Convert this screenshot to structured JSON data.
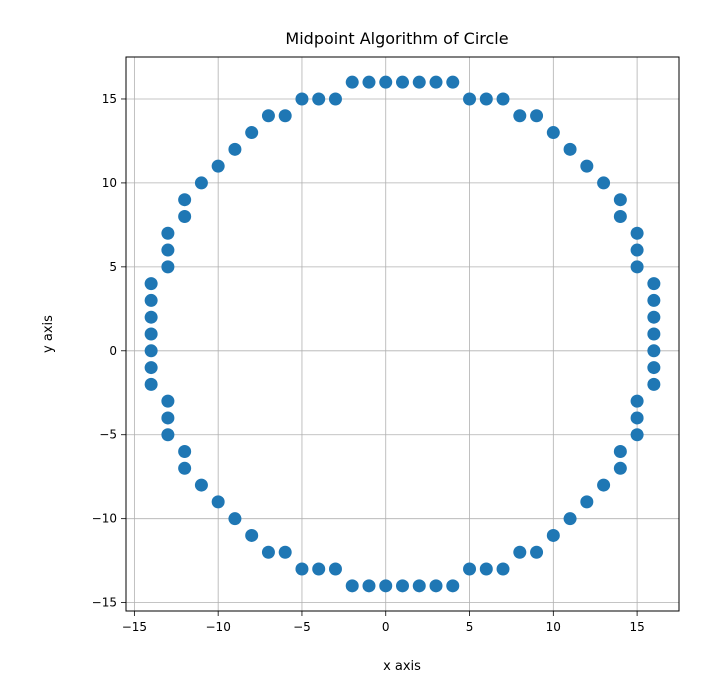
{
  "chart_data": {
    "type": "scatter",
    "title": "Midpoint Algorithm of Circle",
    "xlabel": "x axis",
    "ylabel": "y axis",
    "xlim": [
      -15.5,
      17.5
    ],
    "ylim": [
      -15.5,
      17.5
    ],
    "xticks": [
      -15,
      -10,
      -5,
      0,
      5,
      10,
      15
    ],
    "yticks": [
      -15,
      -10,
      -5,
      0,
      5,
      10,
      15
    ],
    "xtick_labels": [
      "−15",
      "−10",
      "−5",
      "0",
      "5",
      "10",
      "15"
    ],
    "ytick_labels": [
      "−15",
      "−10",
      "−5",
      "0",
      "5",
      "10",
      "15"
    ],
    "grid": true,
    "marker_color": "#1f77b4",
    "points": [
      [
        -2,
        16
      ],
      [
        -1,
        16
      ],
      [
        0,
        16
      ],
      [
        1,
        16
      ],
      [
        2,
        16
      ],
      [
        3,
        16
      ],
      [
        4,
        16
      ],
      [
        -5,
        15
      ],
      [
        -4,
        15
      ],
      [
        -3,
        15
      ],
      [
        5,
        15
      ],
      [
        6,
        15
      ],
      [
        7,
        15
      ],
      [
        -7,
        14
      ],
      [
        -6,
        14
      ],
      [
        8,
        14
      ],
      [
        9,
        14
      ],
      [
        -8,
        13
      ],
      [
        10,
        13
      ],
      [
        -9,
        12
      ],
      [
        11,
        12
      ],
      [
        -10,
        11
      ],
      [
        12,
        11
      ],
      [
        -11,
        10
      ],
      [
        13,
        10
      ],
      [
        -12,
        9
      ],
      [
        14,
        9
      ],
      [
        -12,
        8
      ],
      [
        14,
        8
      ],
      [
        -13,
        7
      ],
      [
        15,
        7
      ],
      [
        -13,
        6
      ],
      [
        15,
        6
      ],
      [
        -13,
        5
      ],
      [
        15,
        5
      ],
      [
        -14,
        4
      ],
      [
        16,
        4
      ],
      [
        -14,
        3
      ],
      [
        16,
        3
      ],
      [
        -14,
        2
      ],
      [
        16,
        2
      ],
      [
        -14,
        1
      ],
      [
        16,
        1
      ],
      [
        -14,
        0
      ],
      [
        16,
        0
      ],
      [
        -14,
        -1
      ],
      [
        16,
        -1
      ],
      [
        -14,
        -2
      ],
      [
        16,
        -2
      ],
      [
        -13,
        -3
      ],
      [
        15,
        -3
      ],
      [
        -13,
        -4
      ],
      [
        15,
        -4
      ],
      [
        -13,
        -5
      ],
      [
        15,
        -5
      ],
      [
        -12,
        -6
      ],
      [
        14,
        -6
      ],
      [
        -12,
        -7
      ],
      [
        14,
        -7
      ],
      [
        -11,
        -8
      ],
      [
        13,
        -8
      ],
      [
        -10,
        -9
      ],
      [
        12,
        -9
      ],
      [
        -9,
        -10
      ],
      [
        11,
        -10
      ],
      [
        -8,
        -11
      ],
      [
        10,
        -11
      ],
      [
        -7,
        -12
      ],
      [
        -6,
        -12
      ],
      [
        8,
        -12
      ],
      [
        9,
        -12
      ],
      [
        -5,
        -13
      ],
      [
        -4,
        -13
      ],
      [
        -3,
        -13
      ],
      [
        5,
        -13
      ],
      [
        6,
        -13
      ],
      [
        7,
        -13
      ],
      [
        -2,
        -14
      ],
      [
        -1,
        -14
      ],
      [
        0,
        -14
      ],
      [
        1,
        -14
      ],
      [
        2,
        -14
      ],
      [
        3,
        -14
      ],
      [
        4,
        -14
      ]
    ]
  }
}
